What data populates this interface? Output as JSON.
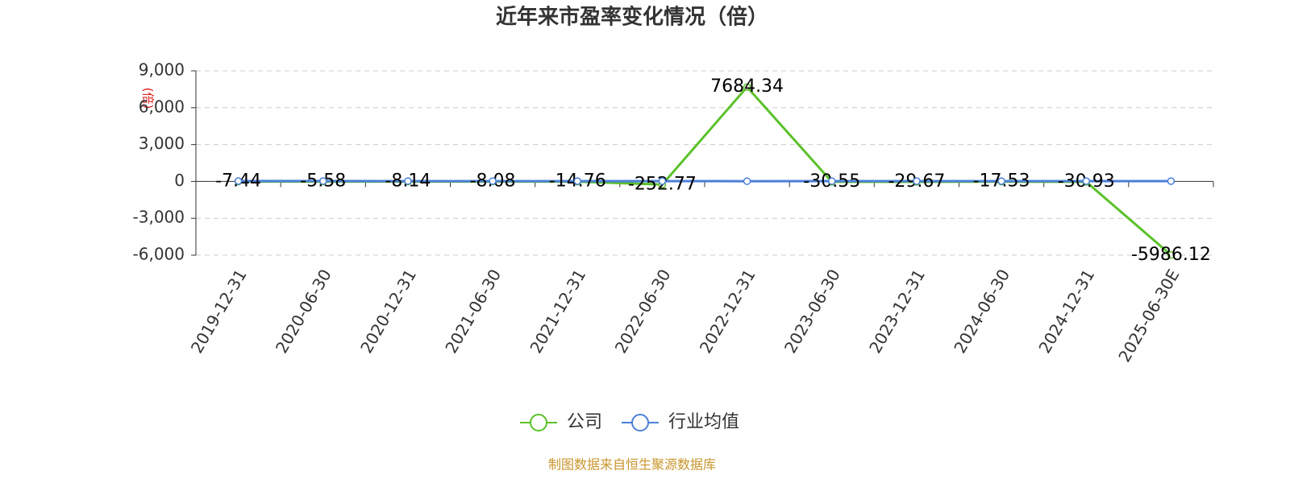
{
  "chart_data": {
    "type": "line",
    "title": "近年来市盈率变化情况（倍）",
    "y_label": "(倍)",
    "source": "制图数据来自恒生聚源数据库",
    "categories": [
      "2019-12-31",
      "2020-06-30",
      "2020-12-31",
      "2021-06-30",
      "2021-12-31",
      "2022-06-30",
      "2022-12-31",
      "2023-06-30",
      "2023-12-31",
      "2024-06-30",
      "2024-12-31",
      "2025-06-30E"
    ],
    "series": [
      {
        "name": "公司",
        "color": "#5ac12a",
        "values": [
          -7.44,
          -5.58,
          -8.14,
          -8.08,
          -14.76,
          -252.77,
          7684.34,
          -30.55,
          -29.67,
          -17.53,
          -30.93,
          -5986.12
        ],
        "show_labels": true
      },
      {
        "name": "行业均值",
        "color": "#4b7fd9",
        "values": [
          35,
          32,
          30,
          29,
          27,
          24,
          22,
          24,
          25,
          26,
          27,
          28
        ],
        "show_labels": false
      }
    ],
    "ylim": [
      -6000,
      9000
    ],
    "yticks": [
      {
        "value": -6000,
        "label": "-6,000"
      },
      {
        "value": -3000,
        "label": "-3,000"
      },
      0,
      {
        "value": 3000,
        "label": "3,000"
      },
      {
        "value": 6000,
        "label": "6,000"
      },
      {
        "value": 9000,
        "label": "9,000"
      }
    ],
    "grid": true
  }
}
